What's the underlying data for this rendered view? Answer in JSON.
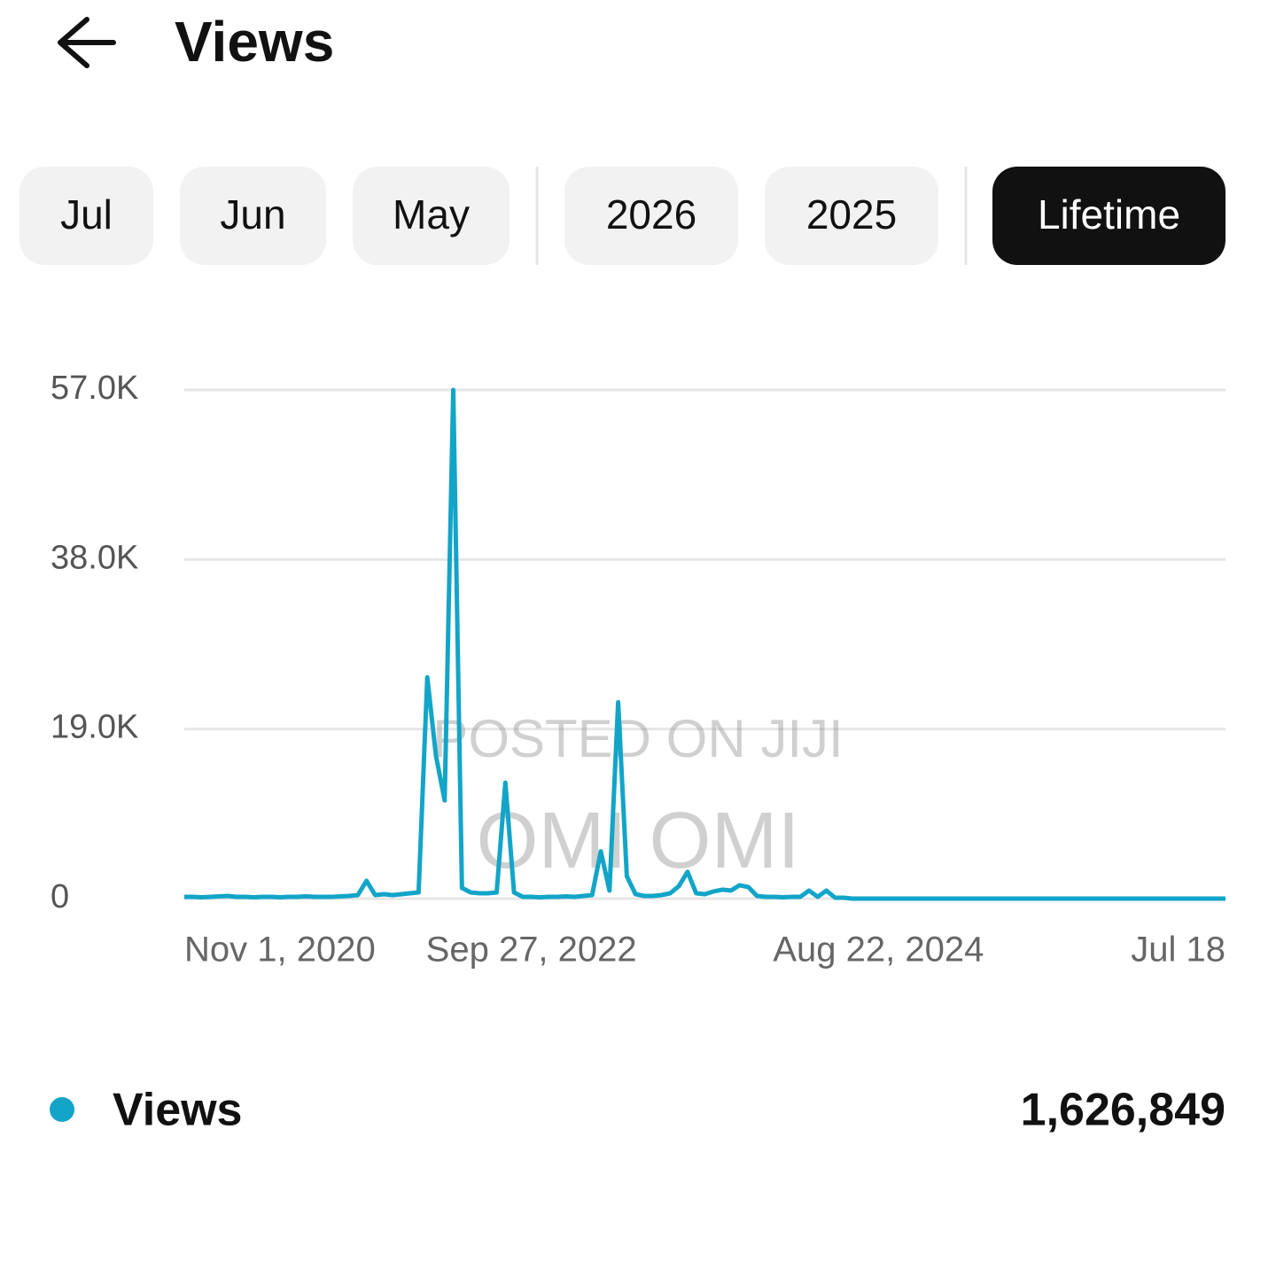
{
  "header": {
    "title": "Views"
  },
  "tabs": [
    "Jul",
    "Jun",
    "May",
    "2026",
    "2025",
    "Lifetime"
  ],
  "selected_tab": 5,
  "chart_data": {
    "type": "line",
    "categories": [
      "Nov 1, 2020",
      null,
      null,
      null,
      null,
      null,
      null,
      null,
      null,
      null,
      null,
      null,
      null,
      null,
      null,
      null,
      null,
      null,
      null,
      null,
      null,
      null,
      null,
      null,
      null,
      null,
      null,
      null,
      null,
      null,
      null,
      null,
      null,
      null,
      null,
      null,
      null,
      null,
      null,
      null,
      "Sep 27, 2022",
      null,
      null,
      null,
      null,
      null,
      null,
      null,
      null,
      null,
      null,
      null,
      null,
      null,
      null,
      null,
      null,
      null,
      null,
      null,
      null,
      null,
      null,
      null,
      null,
      null,
      null,
      null,
      null,
      null,
      null,
      null,
      null,
      null,
      null,
      null,
      null,
      null,
      null,
      null,
      "Aug 22, 2024",
      null,
      null,
      null,
      null,
      null,
      null,
      null,
      null,
      null,
      null,
      null,
      null,
      null,
      null,
      null,
      null,
      null,
      null,
      null,
      null,
      null,
      null,
      null,
      null,
      null,
      null,
      null,
      null,
      null,
      null,
      null,
      null,
      null,
      null,
      null,
      null,
      null,
      null,
      null,
      "Jul 18"
    ],
    "series": [
      {
        "name": "Views",
        "color": "#12a5c8",
        "values": [
          200,
          200,
          150,
          200,
          250,
          300,
          200,
          200,
          150,
          200,
          200,
          150,
          200,
          200,
          250,
          200,
          200,
          200,
          250,
          300,
          400,
          2000,
          400,
          500,
          400,
          500,
          600,
          700,
          24800,
          16000,
          11000,
          57000,
          1200,
          700,
          600,
          600,
          700,
          13000,
          700,
          200,
          200,
          150,
          200,
          200,
          250,
          200,
          300,
          400,
          5300,
          900,
          22000,
          2500,
          500,
          300,
          300,
          400,
          600,
          1400,
          3000,
          600,
          500,
          800,
          1000,
          900,
          1500,
          1300,
          300,
          200,
          200,
          150,
          200,
          200,
          900,
          200,
          900,
          100,
          100,
          0,
          0,
          0,
          0,
          0,
          0,
          0,
          0,
          0,
          0,
          0,
          0,
          0,
          0,
          0,
          0,
          0,
          0,
          0,
          0,
          0,
          0,
          0,
          0,
          0,
          0,
          0,
          0,
          0,
          0,
          0,
          0,
          0,
          0,
          0,
          0,
          0,
          0,
          0,
          0,
          0,
          0,
          0,
          0
        ]
      }
    ],
    "ylim": [
      0,
      57000
    ],
    "yticks": [
      0,
      {
        "value": 19000,
        "label": "19.0K"
      },
      {
        "value": 38000,
        "label": "38.0K"
      },
      {
        "value": 57000,
        "label": "57.0K"
      }
    ],
    "grid": true
  },
  "total": "1,626,849",
  "watermark": [
    "POSTED ON JIJI",
    "OMI OMI"
  ]
}
